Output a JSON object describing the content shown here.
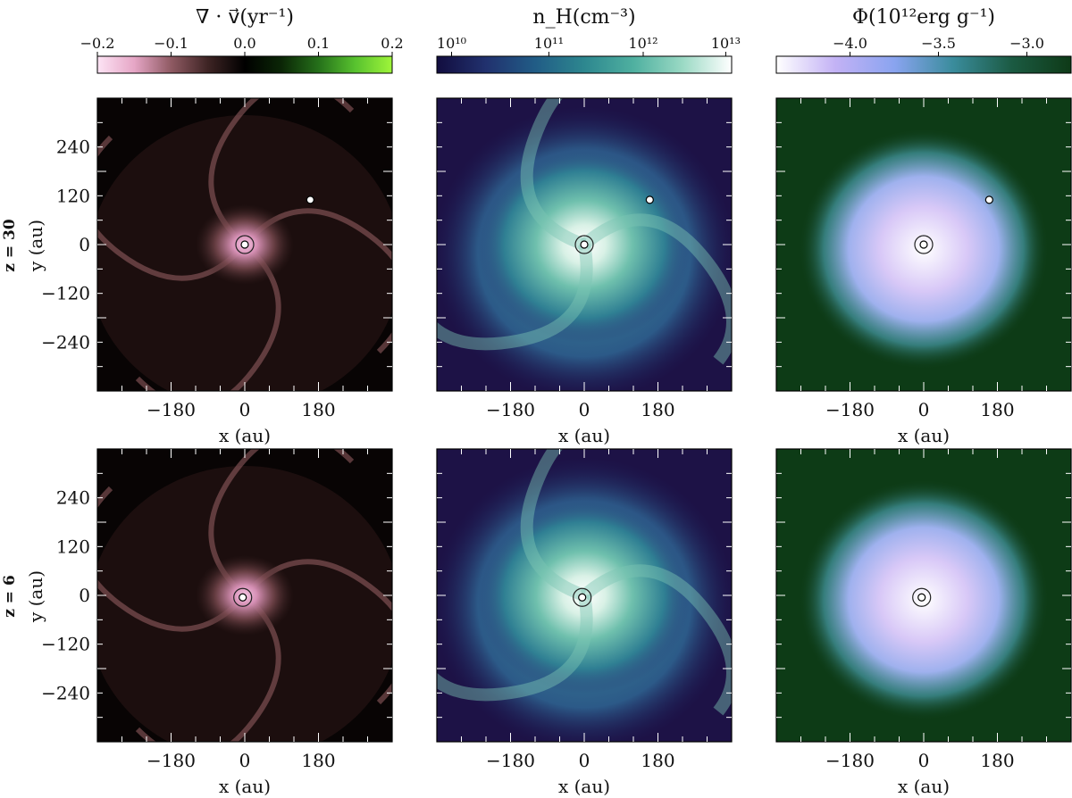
{
  "colorbars": [
    {
      "title": "∇ · v⃗(yr⁻¹)",
      "ticks": [
        "−0.2",
        "−0.1",
        "0.0",
        "0.1",
        "0.2"
      ],
      "tick_fracs": [
        0,
        0.25,
        0.5,
        0.75,
        1.0
      ],
      "stops": [
        "#fde4f5",
        "#e6a6c6",
        "#8f5a63",
        "#3e2424",
        "#000000",
        "#0b2606",
        "#25701a",
        "#58c22f",
        "#9ff53a"
      ]
    },
    {
      "title": "n_H(cm⁻³)",
      "ticks": [
        "10¹⁰",
        "10¹¹",
        "10¹²",
        "10¹³"
      ],
      "tick_fracs": [
        0.05,
        0.38,
        0.7,
        0.98
      ],
      "stops": [
        "#120d3f",
        "#21316e",
        "#215c86",
        "#2d878f",
        "#4fb0a0",
        "#9ad9c4",
        "#ffffff"
      ]
    },
    {
      "title": "Φ(10¹²erg g⁻¹)",
      "ticks": [
        "−4.0",
        "−3.5",
        "−3.0"
      ],
      "tick_fracs": [
        0.25,
        0.55,
        0.85
      ],
      "stops": [
        "#ffffff",
        "#c3b2f5",
        "#8aa4f0",
        "#3a8c9c",
        "#1b5a42",
        "#0e3a17"
      ]
    }
  ],
  "rows": [
    {
      "label": "z = 30",
      "companion": true
    },
    {
      "label": "z = 6",
      "companion": false
    }
  ],
  "panel_kinds": [
    "divergence",
    "density",
    "potential"
  ],
  "chart_data": {
    "type": "heatmap",
    "xlabel": "x (au)",
    "ylabel": "y (au)",
    "xticks": [
      -180,
      0,
      180
    ],
    "yticks": [
      240,
      120,
      0,
      -120,
      -240
    ],
    "xlim": [
      -360,
      360
    ],
    "ylim": [
      -360,
      360
    ],
    "xtick_labels": [
      "−180",
      "0",
      "180"
    ],
    "ytick_labels": [
      "240",
      "120",
      "0",
      "−120",
      "−240"
    ],
    "markers": {
      "central": [
        {
          "row": "z = 30",
          "x": 0,
          "y": 0
        },
        {
          "row": "z = 6",
          "x": -5,
          "y": -5
        }
      ],
      "companion": [
        {
          "row": "z = 30",
          "x": 160,
          "y": 110
        }
      ]
    }
  }
}
